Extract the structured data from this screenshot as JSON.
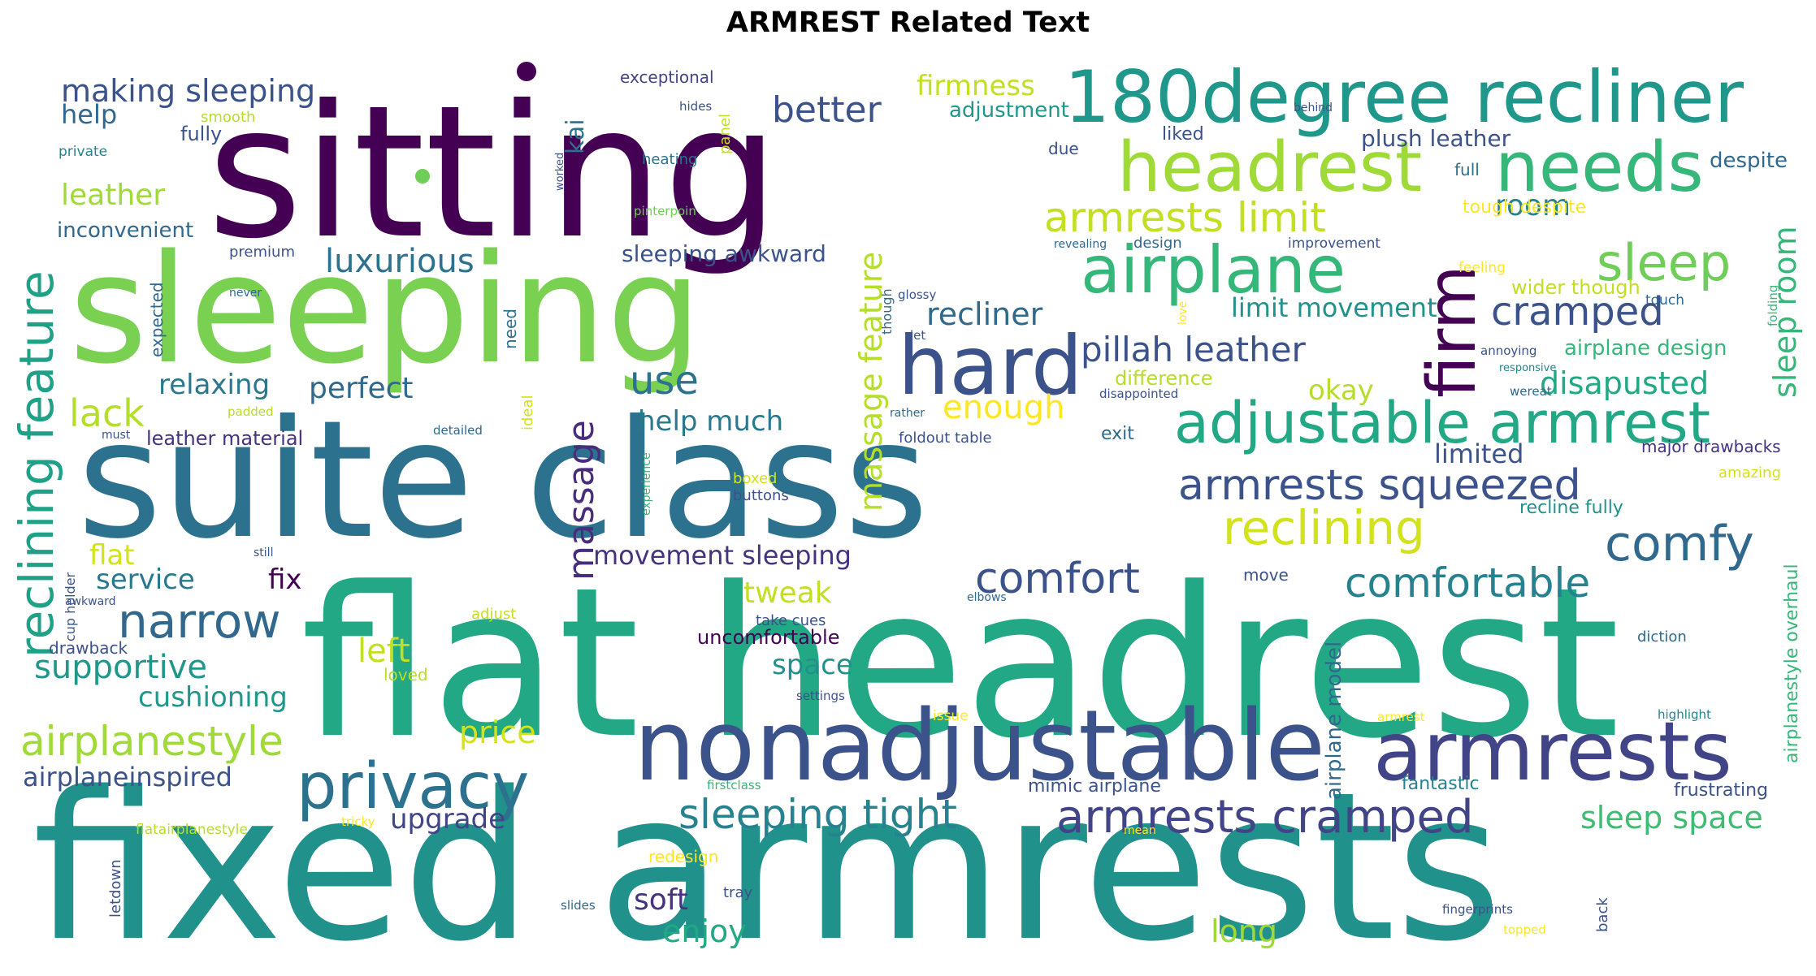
{
  "title": "ARMREST Related Text",
  "words": [
    {
      "text": "fixed armrests",
      "color": "#21918c"
    },
    {
      "text": "flat headrest",
      "color": "#22a884"
    },
    {
      "text": "sitting",
      "color": "#440154"
    },
    {
      "text": "suite class",
      "color": "#2c728e"
    },
    {
      "text": "sleeping",
      "color": "#7ad151"
    },
    {
      "text": "nonadjustable",
      "color": "#3b528b"
    },
    {
      "text": "armrests",
      "color": "#414487"
    },
    {
      "text": "180degree recliner",
      "color": "#1f988b"
    },
    {
      "text": "headrest",
      "color": "#a0da39"
    },
    {
      "text": "needs",
      "color": "#35b779"
    },
    {
      "text": "hard",
      "color": "#3b528b"
    },
    {
      "text": "airplane",
      "color": "#35b779"
    },
    {
      "text": "firm",
      "color": "#440154"
    },
    {
      "text": "sleep",
      "color": "#6ece58"
    },
    {
      "text": "adjustable armrest",
      "color": "#22a884"
    },
    {
      "text": "armrests cramped",
      "color": "#414487"
    },
    {
      "text": "privacy",
      "color": "#2c728e"
    },
    {
      "text": "narrow",
      "color": "#31688e"
    },
    {
      "text": "armrests squeezed",
      "color": "#3b528b"
    },
    {
      "text": "comfy",
      "color": "#31688e"
    },
    {
      "text": "comfortable",
      "color": "#26828e"
    },
    {
      "text": "comfort",
      "color": "#3b528b"
    },
    {
      "text": "reclining",
      "color": "#d2e21b"
    },
    {
      "text": "sleeping tight",
      "color": "#26828e"
    },
    {
      "text": "armrests limit",
      "color": "#c2df23"
    },
    {
      "text": "pillah leather",
      "color": "#3b528b"
    },
    {
      "text": "cramped",
      "color": "#3b528b"
    },
    {
      "text": "airplanestyle",
      "color": "#a0da39"
    },
    {
      "text": "reclining feature",
      "color": "#1fa187"
    },
    {
      "text": "making sleeping",
      "color": "#3b528b"
    },
    {
      "text": "luxurious",
      "color": "#2c728e"
    },
    {
      "text": "better",
      "color": "#3b528b"
    },
    {
      "text": "massage",
      "color": "#472d7b"
    },
    {
      "text": "massage feature",
      "color": "#b5de2b"
    },
    {
      "text": "use",
      "color": "#2c728e"
    },
    {
      "text": "recliner",
      "color": "#31688e"
    },
    {
      "text": "disapusted",
      "color": "#22a884"
    },
    {
      "text": "sleep room",
      "color": "#35b779"
    },
    {
      "text": "sleep space",
      "color": "#3fbc73"
    },
    {
      "text": "supportive",
      "color": "#1f988b"
    },
    {
      "text": "lack",
      "color": "#b5de2b"
    },
    {
      "text": "leather",
      "color": "#a0da39"
    },
    {
      "text": "perfect",
      "color": "#31688e"
    },
    {
      "text": "relaxing",
      "color": "#2a788e"
    },
    {
      "text": "enough",
      "color": "#fde725"
    },
    {
      "text": "room",
      "color": "#26828e"
    },
    {
      "text": "limited",
      "color": "#3b528b"
    },
    {
      "text": "okay",
      "color": "#b5de2b"
    },
    {
      "text": "help much",
      "color": "#2a788e"
    },
    {
      "text": "movement sleeping",
      "color": "#46327e"
    },
    {
      "text": "tweak",
      "color": "#c2df23"
    },
    {
      "text": "fix",
      "color": "#440154"
    },
    {
      "text": "service",
      "color": "#2a788e"
    },
    {
      "text": "flat",
      "color": "#d2e21b"
    },
    {
      "text": "cushioning",
      "color": "#1f988b"
    },
    {
      "text": "left",
      "color": "#c2df23"
    },
    {
      "text": "price",
      "color": "#d2e21b"
    },
    {
      "text": "space",
      "color": "#21918c"
    },
    {
      "text": "upgrade",
      "color": "#414487"
    },
    {
      "text": "soft",
      "color": "#46327e"
    },
    {
      "text": "enjoy",
      "color": "#22a884"
    },
    {
      "text": "long",
      "color": "#a0da39"
    },
    {
      "text": "airplaneinspired",
      "color": "#3b528b"
    },
    {
      "text": "firmness",
      "color": "#c2df23"
    },
    {
      "text": "adjustment",
      "color": "#1f988b"
    },
    {
      "text": "plush leather",
      "color": "#3b528b"
    },
    {
      "text": "limit movement",
      "color": "#21918c"
    },
    {
      "text": "help",
      "color": "#31688e"
    },
    {
      "text": "sleeping awkward",
      "color": "#3b528b"
    },
    {
      "text": "fully",
      "color": "#3b528b"
    },
    {
      "text": "inconvenient",
      "color": "#31688e"
    },
    {
      "text": "kai",
      "color": "#2c728e"
    },
    {
      "text": "uncomfortable",
      "color": "#440154"
    },
    {
      "text": "leather material",
      "color": "#46327e"
    },
    {
      "text": "airplane model",
      "color": "#31688e"
    },
    {
      "text": "airplane design",
      "color": "#35b779"
    },
    {
      "text": "mimic airplane",
      "color": "#3b528b"
    },
    {
      "text": "fantastic",
      "color": "#26828e"
    },
    {
      "text": "frustrating",
      "color": "#3b528b"
    },
    {
      "text": "recline fully",
      "color": "#21918c"
    },
    {
      "text": "wider though",
      "color": "#c2df23"
    },
    {
      "text": "tough despite",
      "color": "#fde725"
    },
    {
      "text": "difference",
      "color": "#b5de2b"
    },
    {
      "text": "major drawbacks",
      "color": "#46327e"
    },
    {
      "text": "airplanestyle overhaul",
      "color": "#35b779"
    },
    {
      "text": "despite",
      "color": "#31688e"
    },
    {
      "text": "full",
      "color": "#2c728e"
    },
    {
      "text": "exceptional",
      "color": "#414487"
    },
    {
      "text": "liked",
      "color": "#3b528b"
    },
    {
      "text": "due",
      "color": "#3b528b"
    },
    {
      "text": "heating",
      "color": "#2c728e"
    },
    {
      "text": "smooth",
      "color": "#b5de2b"
    },
    {
      "text": "panel",
      "color": "#c2df23"
    },
    {
      "text": "private",
      "color": "#26828e"
    },
    {
      "text": "premium",
      "color": "#3b528b"
    },
    {
      "text": "expected",
      "color": "#31688e"
    },
    {
      "text": "need",
      "color": "#2c728e"
    },
    {
      "text": "though",
      "color": "#31688e"
    },
    {
      "text": "ideal",
      "color": "#d2e21b"
    },
    {
      "text": "exit",
      "color": "#31688e"
    },
    {
      "text": "foldout table",
      "color": "#3b528b"
    },
    {
      "text": "boxed",
      "color": "#d2e21b"
    },
    {
      "text": "buttons",
      "color": "#3b528b"
    },
    {
      "text": "move",
      "color": "#3b528b"
    },
    {
      "text": "take cues",
      "color": "#3b528b"
    },
    {
      "text": "diction",
      "color": "#31688e"
    },
    {
      "text": "adjust",
      "color": "#c2df23"
    },
    {
      "text": "loved",
      "color": "#b5de2b"
    },
    {
      "text": "drawback",
      "color": "#3b528b"
    },
    {
      "text": "cup holder",
      "color": "#3b528b"
    },
    {
      "text": "tray",
      "color": "#3b528b"
    },
    {
      "text": "back",
      "color": "#3b528b"
    },
    {
      "text": "redesign",
      "color": "#fde725"
    },
    {
      "text": "design",
      "color": "#31688e"
    },
    {
      "text": "improvement",
      "color": "#3b528b"
    },
    {
      "text": "revealing",
      "color": "#31688e"
    },
    {
      "text": "feeling",
      "color": "#fde725"
    },
    {
      "text": "touch",
      "color": "#31688e"
    },
    {
      "text": "annoying",
      "color": "#3b528b"
    },
    {
      "text": "responsive",
      "color": "#26828e"
    },
    {
      "text": "wereat",
      "color": "#31688e"
    },
    {
      "text": "amazing",
      "color": "#d2e21b"
    },
    {
      "text": "glossy",
      "color": "#3b528b"
    },
    {
      "text": "let",
      "color": "#3b528b"
    },
    {
      "text": "love",
      "color": "#fde725"
    },
    {
      "text": "rather",
      "color": "#31688e"
    },
    {
      "text": "disappointed",
      "color": "#3b528b"
    },
    {
      "text": "padded",
      "color": "#b5de2b"
    },
    {
      "text": "must",
      "color": "#3b528b"
    },
    {
      "text": "detailed",
      "color": "#31688e"
    },
    {
      "text": "experience",
      "color": "#35b779"
    },
    {
      "text": "still",
      "color": "#3b528b"
    },
    {
      "text": "awkward",
      "color": "#3b528b"
    },
    {
      "text": "never",
      "color": "#31688e"
    },
    {
      "text": "hides",
      "color": "#3b528b"
    },
    {
      "text": "worked",
      "color": "#3b528b"
    },
    {
      "text": "pinterpoin",
      "color": "#6ece58"
    },
    {
      "text": "behind",
      "color": "#3b528b"
    },
    {
      "text": "folding",
      "color": "#35b779"
    },
    {
      "text": "elbows",
      "color": "#31688e"
    },
    {
      "text": "settings",
      "color": "#3b528b"
    },
    {
      "text": "issue",
      "color": "#fde725"
    },
    {
      "text": "armrest",
      "color": "#fde725"
    },
    {
      "text": "highlight",
      "color": "#26828e"
    },
    {
      "text": "firstclass",
      "color": "#35b779"
    },
    {
      "text": "flatairplanestyle",
      "color": "#b5de2b"
    },
    {
      "text": "tricky",
      "color": "#fde725"
    },
    {
      "text": "mean",
      "color": "#fde725"
    },
    {
      "text": "letdown",
      "color": "#3b528b"
    },
    {
      "text": "slides",
      "color": "#31688e"
    },
    {
      "text": "fingerprints",
      "color": "#3b528b"
    },
    {
      "text": "topped",
      "color": "#fde725"
    }
  ]
}
